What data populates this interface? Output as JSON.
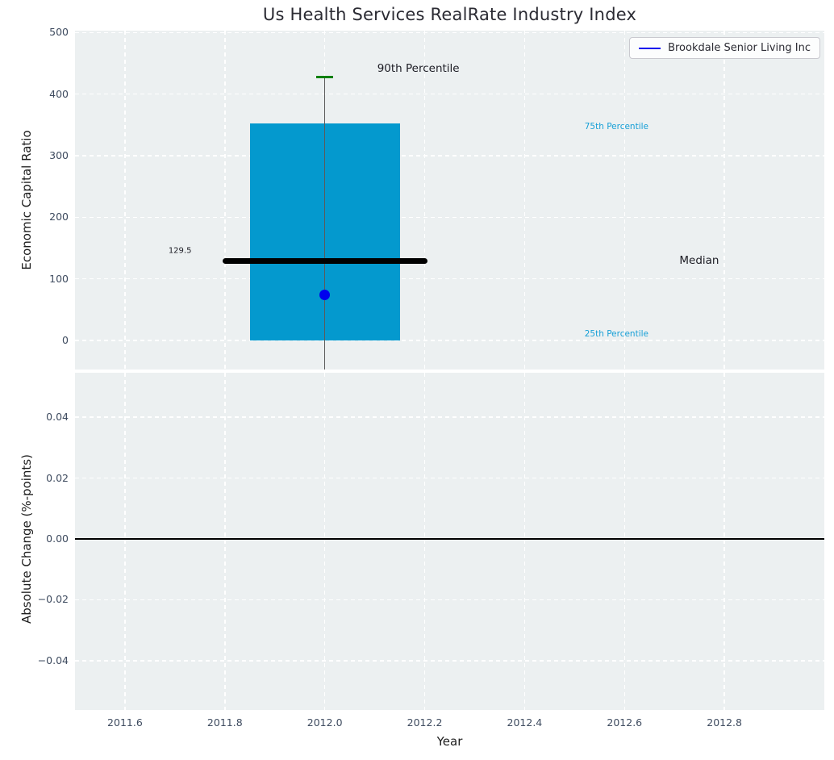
{
  "colors": {
    "axes_background": "#ecf0f1",
    "grid": "#ffffff",
    "box_fill": "#0499ce",
    "median_line": "#000000",
    "whisker": "#5a5a5a",
    "p90_cap": "#008000",
    "company_point": "#0000ee",
    "percentile_text": "#169fd6",
    "tick_label": "#3e4b5f",
    "zero_line": "#000000"
  },
  "chart_data": [
    {
      "type": "boxplot",
      "title": "Us Health Services RealRate Industry Index",
      "ylabel": "Economic Capital Ratio",
      "xlim": [
        2011.5,
        2013.0
      ],
      "ylim": [
        -47,
        503
      ],
      "grid": true,
      "yticks": [
        {
          "v": 0,
          "label": "0"
        },
        {
          "v": 100,
          "label": "100"
        },
        {
          "v": 200,
          "label": "200"
        },
        {
          "v": 300,
          "label": "300"
        },
        {
          "v": 400,
          "label": "400"
        },
        {
          "v": 500,
          "label": "500"
        }
      ],
      "legend": {
        "position": "upper right",
        "label": "Brookdale Senior Living Inc",
        "line_color": "#0000ee"
      },
      "box": {
        "x": 2012.0,
        "box_width": 0.3,
        "median_width": 0.41,
        "cap_width": 0.033,
        "p25": 0,
        "median": 129.5,
        "p75": 353,
        "p90": 428,
        "whisker_low": -47,
        "fill_color": "#0499ce",
        "median_color": "#000000",
        "whisker_color": "#5a5a5a",
        "cap_color": "#008000"
      },
      "point": {
        "x": 2012.0,
        "y": 74,
        "color": "#0000ee",
        "label": "Brookdale Senior Living Inc"
      },
      "annotations": [
        {
          "text": "90th Percentile",
          "x": 2012.105,
          "y": 441,
          "color": "#1c1c24",
          "size": 13.5
        },
        {
          "text": "75th Percentile",
          "x": 2012.52,
          "y": 347,
          "color": "#169fd6",
          "size": 10.5
        },
        {
          "text": "Median",
          "x": 2012.71,
          "y": 130,
          "color": "#1c1c24",
          "size": 13.5
        },
        {
          "text": "25th Percentile",
          "x": 2012.52,
          "y": 10,
          "color": "#169fd6",
          "size": 10.5
        },
        {
          "text": "129.5",
          "x": 2011.687,
          "y": 145,
          "color": "#1c1c24",
          "size": 10
        }
      ]
    },
    {
      "type": "line",
      "ylabel": "Absolute Change (%-points)",
      "xlabel": "Year",
      "xlim": [
        2011.5,
        2013.0
      ],
      "ylim": [
        -0.0562,
        0.0546
      ],
      "grid": true,
      "zero_line": true,
      "yticks": [
        {
          "v": -0.04,
          "label": "−0.04"
        },
        {
          "v": -0.02,
          "label": "−0.02"
        },
        {
          "v": 0.0,
          "label": "0.00"
        },
        {
          "v": 0.02,
          "label": "0.02"
        },
        {
          "v": 0.04,
          "label": "0.04"
        }
      ],
      "xticks": [
        {
          "v": 2011.6,
          "label": "2011.6"
        },
        {
          "v": 2011.8,
          "label": "2011.8"
        },
        {
          "v": 2012.0,
          "label": "2012.0"
        },
        {
          "v": 2012.2,
          "label": "2012.2"
        },
        {
          "v": 2012.4,
          "label": "2012.4"
        },
        {
          "v": 2012.6,
          "label": "2012.6"
        },
        {
          "v": 2012.8,
          "label": "2012.8"
        }
      ],
      "series": []
    }
  ]
}
